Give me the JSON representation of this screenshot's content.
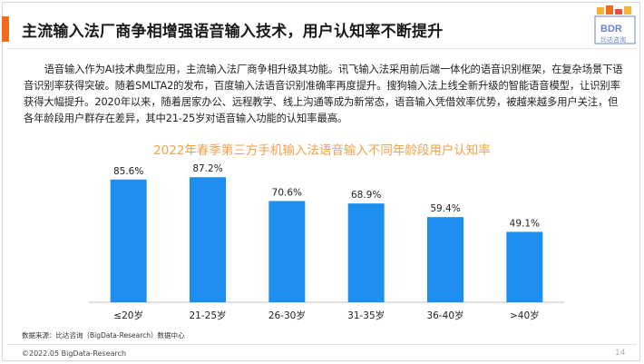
{
  "header": {
    "title": "主流输入法厂商争相增强语音输入技术，用户认知率不断提升",
    "logo_text": "BDR",
    "logo_subtext": "比达咨询"
  },
  "body_text": "语音输入作为AI技术典型应用，主流输入法厂商争相升级其功能。讯飞输入法采用前后端一体化的语音识别框架，在复杂场景下语音识别率获得突破。随着SMLTA2的发布，百度输入法语音识别准确率再度提升。搜狗输入法上线全新升级的智能语音模型，让识别率获得大幅提升。2020年以来，随着居家办公、远程教学、线上沟通等成为新常态，语音输入凭借效率优势，被越来越多用户关注，但各年龄段用户群存在差异，其中21-25岁对语音输入功能的认知率最高。",
  "chart_data": {
    "type": "bar",
    "title": "2022年春季第三方手机输入法语音输入不同年龄段用户认知率",
    "categories": [
      "≤20岁",
      "21-25岁",
      "26-30岁",
      "31-35岁",
      "36-40岁",
      ">40岁"
    ],
    "values": [
      85.6,
      87.2,
      70.6,
      68.9,
      59.4,
      49.1
    ],
    "value_labels": [
      "85.6%",
      "87.2%",
      "70.6%",
      "68.9%",
      "59.4%",
      "49.1%"
    ],
    "xlabel": "",
    "ylabel": "",
    "ylim": [
      0,
      100
    ],
    "grid": false,
    "legend": "none",
    "bar_color": "#1f8fef"
  },
  "footer": {
    "source": "数据来源：比达咨询（BigData-Research）数据中心",
    "copyright": "©2022.05 BigData-Research",
    "page_number": "14"
  },
  "colors": {
    "accent": "#f26b1d",
    "chart_title": "#f2a24a",
    "bar": "#1f8fef",
    "logo": "#6a85c8"
  }
}
